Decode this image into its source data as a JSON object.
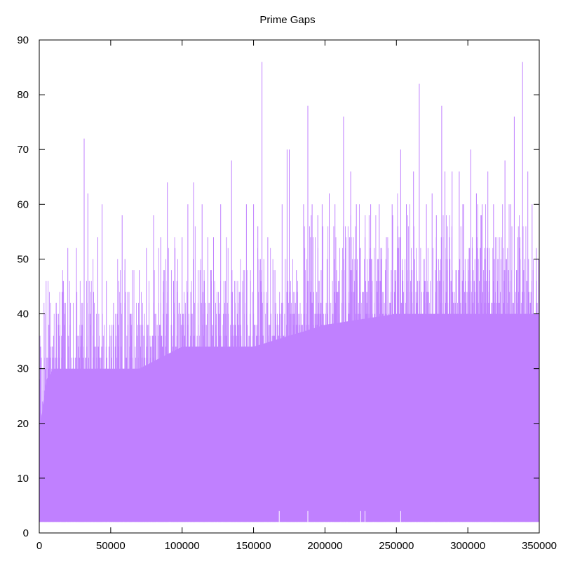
{
  "chart_data": {
    "type": "bar",
    "title": "Prime Gaps",
    "xlabel": "",
    "ylabel": "",
    "xlim": [
      0,
      350000
    ],
    "ylim": [
      0,
      90
    ],
    "x_ticks": [
      0,
      50000,
      100000,
      150000,
      200000,
      250000,
      300000,
      350000
    ],
    "x_tick_labels": [
      "0",
      "50000",
      "100000",
      "150000",
      "200000",
      "250000",
      "300000",
      "350000"
    ],
    "y_ticks": [
      0,
      10,
      20,
      30,
      40,
      50,
      60,
      70,
      80,
      90
    ],
    "y_tick_labels": [
      "0",
      "10",
      "20",
      "30",
      "40",
      "50",
      "60",
      "70",
      "80",
      "90"
    ],
    "grid": false,
    "legend": "none",
    "bar_color": "#c080ff",
    "baseline_value": 2,
    "series": [
      {
        "values_note_free": true,
        "dense_band": [
          {
            "x": 0,
            "y": 18
          },
          {
            "x": 2000,
            "y": 22
          },
          {
            "x": 5000,
            "y": 28
          },
          {
            "x": 10000,
            "y": 30
          },
          {
            "x": 20000,
            "y": 30
          },
          {
            "x": 30000,
            "y": 30
          },
          {
            "x": 50000,
            "y": 30
          },
          {
            "x": 70000,
            "y": 30
          },
          {
            "x": 100000,
            "y": 34
          },
          {
            "x": 150000,
            "y": 34
          },
          {
            "x": 200000,
            "y": 38
          },
          {
            "x": 250000,
            "y": 40
          },
          {
            "x": 300000,
            "y": 40
          },
          {
            "x": 350000,
            "y": 40
          }
        ],
        "peaks": [
          {
            "x": 1000,
            "y": 34
          },
          {
            "x": 6000,
            "y": 32
          },
          {
            "x": 10000,
            "y": 36
          },
          {
            "x": 16000,
            "y": 44
          },
          {
            "x": 20000,
            "y": 52
          },
          {
            "x": 26000,
            "y": 52
          },
          {
            "x": 31400,
            "y": 72
          },
          {
            "x": 34000,
            "y": 62
          },
          {
            "x": 38000,
            "y": 44
          },
          {
            "x": 41000,
            "y": 54
          },
          {
            "x": 44000,
            "y": 60
          },
          {
            "x": 47000,
            "y": 46
          },
          {
            "x": 52000,
            "y": 42
          },
          {
            "x": 58000,
            "y": 58
          },
          {
            "x": 60000,
            "y": 50
          },
          {
            "x": 64000,
            "y": 40
          },
          {
            "x": 70000,
            "y": 48
          },
          {
            "x": 75000,
            "y": 52
          },
          {
            "x": 80000,
            "y": 58
          },
          {
            "x": 85000,
            "y": 54
          },
          {
            "x": 89700,
            "y": 64
          },
          {
            "x": 94000,
            "y": 46
          },
          {
            "x": 100000,
            "y": 54
          },
          {
            "x": 104000,
            "y": 60
          },
          {
            "x": 108000,
            "y": 64
          },
          {
            "x": 114000,
            "y": 60
          },
          {
            "x": 118000,
            "y": 54
          },
          {
            "x": 122000,
            "y": 54
          },
          {
            "x": 127000,
            "y": 60
          },
          {
            "x": 131000,
            "y": 54
          },
          {
            "x": 134600,
            "y": 68
          },
          {
            "x": 140000,
            "y": 44
          },
          {
            "x": 145000,
            "y": 60
          },
          {
            "x": 150000,
            "y": 60
          },
          {
            "x": 153000,
            "y": 56
          },
          {
            "x": 155900,
            "y": 86
          },
          {
            "x": 160000,
            "y": 54
          },
          {
            "x": 165000,
            "y": 48
          },
          {
            "x": 170000,
            "y": 60
          },
          {
            "x": 173500,
            "y": 70
          },
          {
            "x": 175000,
            "y": 70
          },
          {
            "x": 180000,
            "y": 48
          },
          {
            "x": 185000,
            "y": 60
          },
          {
            "x": 188000,
            "y": 78
          },
          {
            "x": 191000,
            "y": 60
          },
          {
            "x": 195000,
            "y": 58
          },
          {
            "x": 198000,
            "y": 60
          },
          {
            "x": 203000,
            "y": 62
          },
          {
            "x": 207000,
            "y": 60
          },
          {
            "x": 213000,
            "y": 76
          },
          {
            "x": 218000,
            "y": 66
          },
          {
            "x": 222000,
            "y": 60
          },
          {
            "x": 228000,
            "y": 54
          },
          {
            "x": 232000,
            "y": 60
          },
          {
            "x": 238000,
            "y": 60
          },
          {
            "x": 243000,
            "y": 54
          },
          {
            "x": 247000,
            "y": 60
          },
          {
            "x": 251000,
            "y": 56
          },
          {
            "x": 253000,
            "y": 70
          },
          {
            "x": 257000,
            "y": 60
          },
          {
            "x": 262000,
            "y": 66
          },
          {
            "x": 266000,
            "y": 82
          },
          {
            "x": 271000,
            "y": 60
          },
          {
            "x": 275000,
            "y": 62
          },
          {
            "x": 278000,
            "y": 58
          },
          {
            "x": 281700,
            "y": 78
          },
          {
            "x": 284000,
            "y": 66
          },
          {
            "x": 289000,
            "y": 66
          },
          {
            "x": 294000,
            "y": 66
          },
          {
            "x": 297000,
            "y": 60
          },
          {
            "x": 302000,
            "y": 70
          },
          {
            "x": 306000,
            "y": 62
          },
          {
            "x": 310000,
            "y": 60
          },
          {
            "x": 314000,
            "y": 66
          },
          {
            "x": 318000,
            "y": 60
          },
          {
            "x": 322000,
            "y": 54
          },
          {
            "x": 326000,
            "y": 68
          },
          {
            "x": 330000,
            "y": 60
          },
          {
            "x": 332500,
            "y": 76
          },
          {
            "x": 335000,
            "y": 54
          },
          {
            "x": 338300,
            "y": 86
          },
          {
            "x": 342000,
            "y": 66
          },
          {
            "x": 345000,
            "y": 60
          },
          {
            "x": 348000,
            "y": 52
          },
          {
            "x": 349500,
            "y": 50
          }
        ],
        "low_notches": [
          {
            "x": 168000,
            "y": 4
          },
          {
            "x": 188000,
            "y": 4
          },
          {
            "x": 225000,
            "y": 4
          },
          {
            "x": 228000,
            "y": 4
          },
          {
            "x": 253000,
            "y": 4
          }
        ]
      }
    ]
  }
}
